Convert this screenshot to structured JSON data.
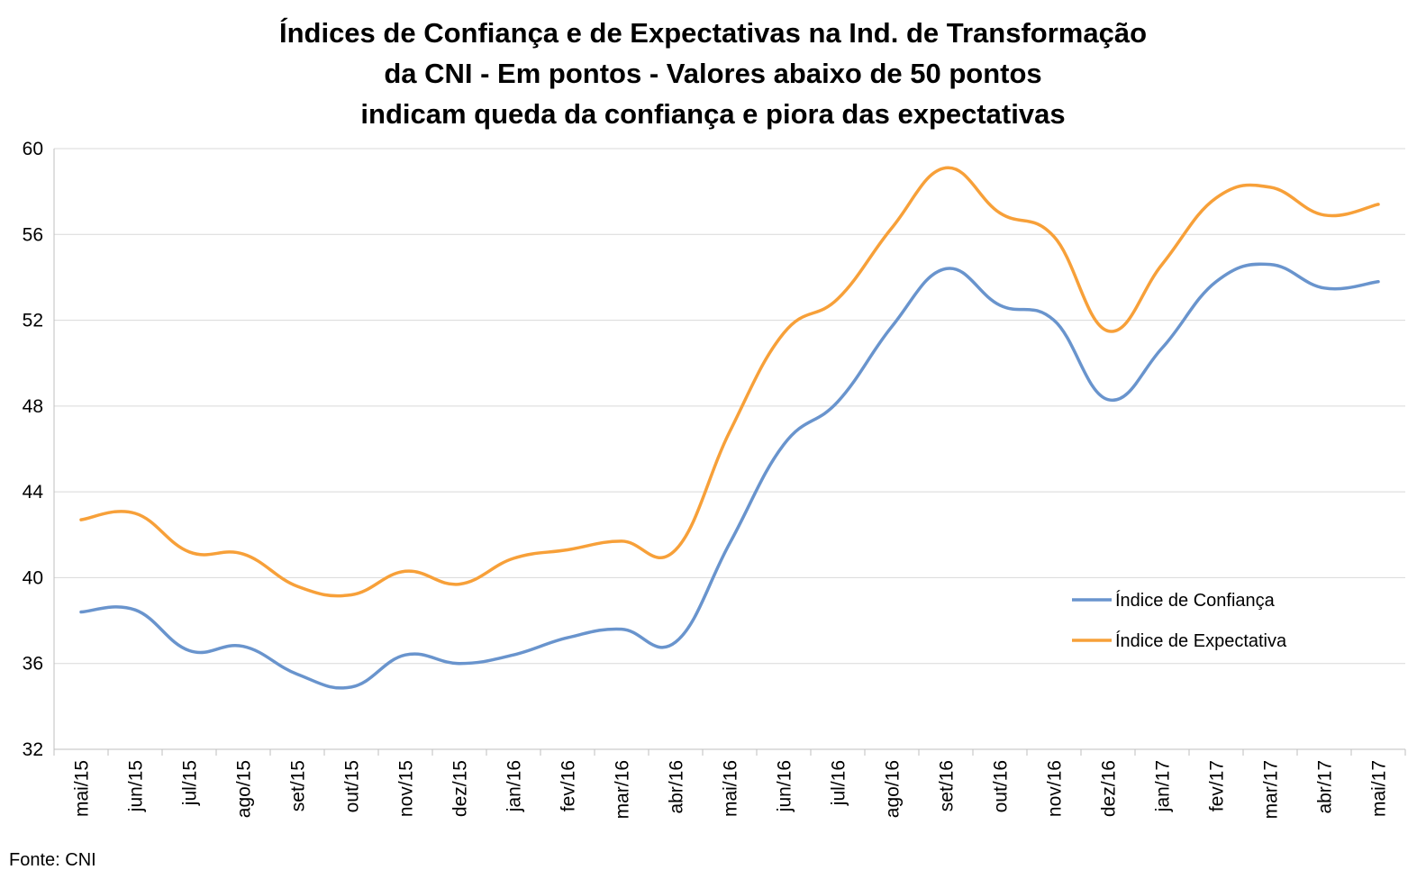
{
  "chart_data": {
    "type": "line",
    "title_lines": [
      "Índices de Confiança e de Expectativas na Ind. de Transformação",
      "da CNI - Em pontos - Valores abaixo de 50 pontos",
      "indicam queda da confiança e piora das expectativas"
    ],
    "categories": [
      "mai/15",
      "jun/15",
      "jul/15",
      "ago/15",
      "set/15",
      "out/15",
      "nov/15",
      "dez/15",
      "jan/16",
      "fev/16",
      "mar/16",
      "abr/16",
      "mai/16",
      "jun/16",
      "jul/16",
      "ago/16",
      "set/16",
      "out/16",
      "nov/16",
      "dez/16",
      "jan/17",
      "fev/17",
      "mar/17",
      "abr/17",
      "mai/17"
    ],
    "series": [
      {
        "name": "Índice de Confiança",
        "color": "#6994CD",
        "values": [
          38.4,
          38.5,
          36.6,
          36.8,
          35.5,
          34.9,
          36.4,
          36.0,
          36.4,
          37.2,
          37.6,
          37.0,
          41.6,
          46.2,
          48.2,
          51.7,
          54.4,
          52.7,
          52.0,
          48.3,
          50.7,
          53.8,
          54.6,
          53.5,
          53.8
        ]
      },
      {
        "name": "Índice de Expectativa",
        "color": "#F7A039",
        "values": [
          42.7,
          43.0,
          41.2,
          41.1,
          39.6,
          39.2,
          40.3,
          39.7,
          40.9,
          41.3,
          41.7,
          41.3,
          46.8,
          51.4,
          53.0,
          56.3,
          59.1,
          57.0,
          55.9,
          51.5,
          54.6,
          57.7,
          58.2,
          56.9,
          57.4
        ]
      }
    ],
    "ylim": [
      32,
      60
    ],
    "yticks": [
      32,
      36,
      40,
      44,
      48,
      52,
      56,
      60
    ],
    "grid": true,
    "legend_position": "right-middle",
    "source": "Fonte: CNI"
  }
}
